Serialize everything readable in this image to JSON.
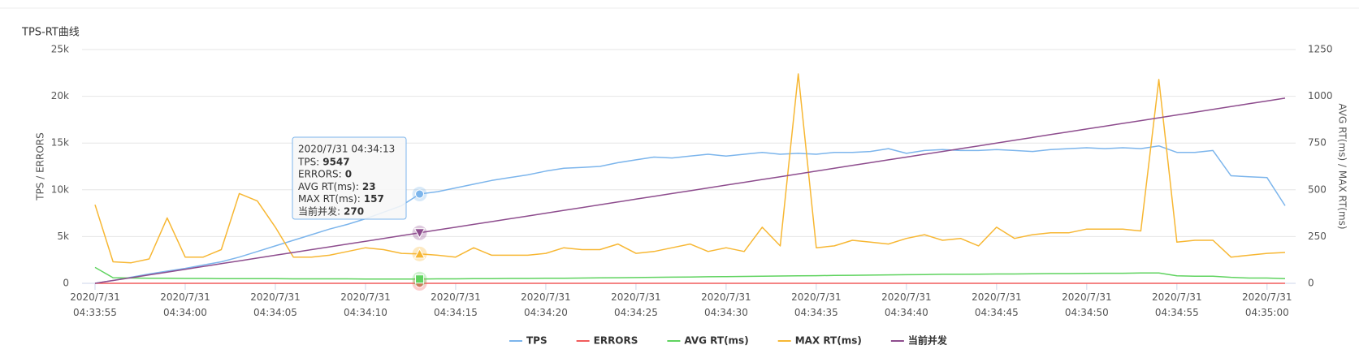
{
  "chart_data": {
    "type": "line",
    "title": "TPS-RT曲线",
    "y_label": "TPS / ERRORS",
    "y2_label": "AVG RT(ms) / MAX RT(ms)",
    "categories": [
      "2020/7/31 04:33:55",
      null,
      null,
      null,
      null,
      "2020/7/31 04:34:00",
      null,
      null,
      null,
      null,
      "2020/7/31 04:34:05",
      null,
      null,
      null,
      null,
      "2020/7/31 04:34:10",
      null,
      null,
      null,
      null,
      "2020/7/31 04:34:15",
      null,
      null,
      null,
      null,
      "2020/7/31 04:34:20",
      null,
      null,
      null,
      null,
      "2020/7/31 04:34:25",
      null,
      null,
      null,
      null,
      "2020/7/31 04:34:30",
      null,
      null,
      null,
      null,
      "2020/7/31 04:34:35",
      null,
      null,
      null,
      null,
      "2020/7/31 04:34:40",
      null,
      null,
      null,
      null,
      "2020/7/31 04:34:45",
      null,
      null,
      null,
      null,
      "2020/7/31 04:34:50",
      null,
      null,
      null,
      null,
      "2020/7/31 04:34:55",
      null,
      null,
      null,
      null,
      "2020/7/31 04:35:00",
      null
    ],
    "series": [
      {
        "name": "TPS",
        "color": "#7cb5ec",
        "values": [
          0,
          300,
          650,
          1000,
          1300,
          1600,
          1950,
          2300,
          2800,
          3400,
          4000,
          4600,
          5200,
          5800,
          6300,
          6900,
          7600,
          8300,
          9547,
          9800,
          10200,
          10600,
          11000,
          11300,
          11600,
          12000,
          12300,
          12400,
          12500,
          12900,
          13200,
          13500,
          13400,
          13600,
          13800,
          13600,
          13800,
          14000,
          13800,
          13900,
          13800,
          14000,
          14000,
          14100,
          14400,
          13900,
          14200,
          14300,
          14200,
          14200,
          14300,
          14200,
          14100,
          14300,
          14400,
          14500,
          14400,
          14500,
          14400,
          14700,
          14000,
          14000,
          14200,
          11500,
          11400,
          11300,
          8300
        ]
      },
      {
        "name": "ERRORS",
        "color": "#f15c5c",
        "values": [
          0,
          0,
          0,
          0,
          0,
          0,
          0,
          0,
          0,
          0,
          0,
          0,
          0,
          0,
          0,
          0,
          0,
          0,
          0,
          0,
          0,
          0,
          0,
          0,
          0,
          0,
          0,
          0,
          0,
          0,
          0,
          0,
          0,
          0,
          0,
          0,
          0,
          0,
          0,
          0,
          0,
          0,
          0,
          0,
          0,
          0,
          0,
          0,
          0,
          0,
          0,
          0,
          0,
          0,
          0,
          0,
          0,
          0,
          0,
          0,
          0,
          0,
          0,
          0,
          0,
          0,
          0
        ]
      },
      {
        "name": "AVG RT(ms)",
        "color": "#5fd35f",
        "axis": "y2",
        "values": [
          85,
          30,
          28,
          27,
          27,
          26,
          26,
          25,
          25,
          25,
          25,
          24,
          24,
          24,
          24,
          23,
          23,
          23,
          23,
          24,
          24,
          25,
          25,
          26,
          26,
          27,
          27,
          28,
          29,
          30,
          31,
          32,
          33,
          34,
          35,
          36,
          37,
          38,
          39,
          40,
          41,
          42,
          43,
          44,
          45,
          46,
          47,
          48,
          48,
          49,
          50,
          50,
          51,
          52,
          52,
          53,
          54,
          54,
          55,
          55,
          40,
          38,
          38,
          32,
          28,
          28,
          25
        ]
      },
      {
        "name": "MAX RT(ms)",
        "color": "#f7b733",
        "axis": "y2",
        "values": [
          420,
          115,
          110,
          130,
          350,
          140,
          140,
          180,
          480,
          440,
          300,
          140,
          140,
          150,
          170,
          190,
          180,
          160,
          157,
          150,
          140,
          190,
          150,
          150,
          150,
          160,
          190,
          180,
          180,
          210,
          160,
          170,
          190,
          210,
          170,
          190,
          170,
          300,
          200,
          1120,
          190,
          200,
          230,
          220,
          210,
          240,
          260,
          230,
          240,
          200,
          300,
          240,
          260,
          270,
          270,
          290,
          290,
          290,
          280,
          1090,
          220,
          230,
          230,
          140,
          150,
          160,
          165
        ]
      },
      {
        "name": "当前并发",
        "color": "#8e4d8e",
        "axis": "y2",
        "values": [
          0,
          15,
          30,
          45,
          60,
          75,
          90,
          105,
          120,
          135,
          150,
          165,
          180,
          195,
          210,
          225,
          240,
          255,
          270,
          285,
          300,
          315,
          330,
          345,
          360,
          375,
          390,
          405,
          420,
          435,
          450,
          465,
          480,
          495,
          510,
          525,
          540,
          555,
          570,
          585,
          600,
          615,
          630,
          645,
          660,
          675,
          690,
          705,
          720,
          735,
          750,
          765,
          780,
          795,
          810,
          825,
          840,
          855,
          870,
          885,
          900,
          915,
          930,
          945,
          960,
          975,
          990
        ]
      }
    ],
    "ylim": [
      0,
      25000
    ],
    "yticks": [
      0,
      {
        "value": 5000,
        "label": "5k"
      },
      {
        "value": 10000,
        "label": "10k"
      },
      {
        "value": 15000,
        "label": "15k"
      },
      {
        "value": 20000,
        "label": "20k"
      },
      {
        "value": 25000,
        "label": "25k"
      }
    ],
    "y2lim": [
      0,
      1250
    ],
    "y2ticks": [
      0,
      250,
      500,
      750,
      1000,
      1250
    ],
    "grid": true,
    "legend": "bottom",
    "tooltip": {
      "title": "2020/7/31 04:34:13",
      "rows": [
        {
          "label": "TPS:",
          "value": 9547
        },
        {
          "label": "ERRORS:",
          "value": 0
        },
        {
          "label": "AVG RT(ms):",
          "value": 23
        },
        {
          "label": "MAX RT(ms):",
          "value": 157
        },
        {
          "label": "当前并发:",
          "value": 270
        }
      ]
    }
  }
}
